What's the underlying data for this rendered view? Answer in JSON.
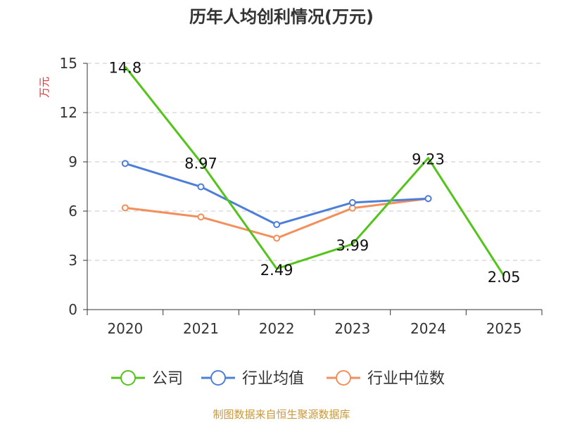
{
  "chart_data": {
    "type": "line",
    "title": "历年人均创利情况(万元)",
    "ylabel": "万元",
    "xlabel": "",
    "categories": [
      "2020",
      "2021",
      "2022",
      "2023",
      "2024",
      "2025"
    ],
    "ylim": [
      0,
      15
    ],
    "yticks": [
      0,
      3,
      6,
      9,
      12,
      15
    ],
    "grid": true,
    "legend_position": "bottom",
    "series": [
      {
        "name": "公司",
        "color": "#52c41a",
        "values": [
          14.8,
          8.97,
          2.49,
          3.99,
          9.23,
          2.05
        ],
        "labels": [
          "14.8",
          "8.97",
          "2.49",
          "3.99",
          "9.23",
          "2.05"
        ],
        "markers": false
      },
      {
        "name": "行业均值",
        "color": "#4d7fd8",
        "values": [
          8.9,
          7.48,
          5.18,
          6.52,
          6.76,
          null
        ],
        "markers": true
      },
      {
        "name": "行业中位数",
        "color": "#f28f5a",
        "values": [
          6.2,
          5.64,
          4.35,
          6.18,
          6.76,
          null
        ],
        "markers": true
      }
    ]
  },
  "footer": {
    "source": "制图数据来自恒生聚源数据库"
  }
}
